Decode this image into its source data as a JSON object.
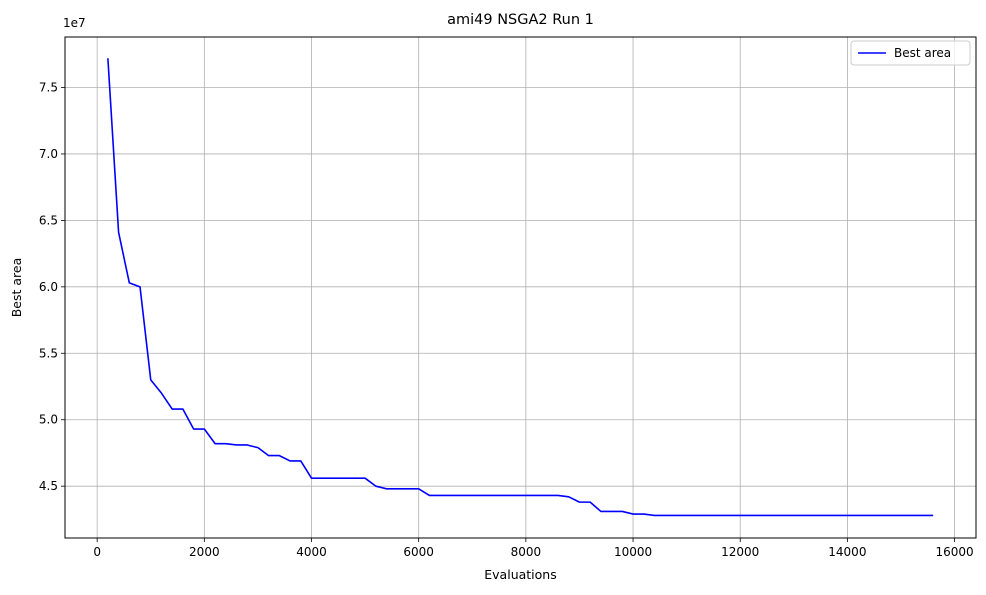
{
  "chart_data": {
    "type": "line",
    "title": "ami49 NSGA2 Run 1",
    "xlabel": "Evaluations",
    "ylabel": "Best area",
    "y_offset_label": "1e7",
    "xlim": [
      -600,
      16400
    ],
    "ylim": [
      41100000,
      78800000
    ],
    "xticks": [
      0,
      2000,
      4000,
      6000,
      8000,
      10000,
      12000,
      14000,
      16000
    ],
    "xtick_labels": [
      "0",
      "2000",
      "4000",
      "6000",
      "8000",
      "10000",
      "12000",
      "14000",
      "16000"
    ],
    "yticks": [
      45000000,
      50000000,
      55000000,
      60000000,
      65000000,
      70000000,
      75000000
    ],
    "ytick_labels": [
      "4.5",
      "5.0",
      "5.5",
      "6.0",
      "6.5",
      "7.0",
      "7.5"
    ],
    "grid": true,
    "legend_position": "top-right",
    "series": [
      {
        "name": "Best area",
        "color": "#0000ff",
        "x": [
          200,
          400,
          600,
          800,
          1000,
          1200,
          1400,
          1600,
          1800,
          2000,
          2200,
          2400,
          2600,
          2800,
          3000,
          3200,
          3400,
          3600,
          3800,
          4000,
          4200,
          4400,
          4600,
          4800,
          5000,
          5200,
          5400,
          5600,
          5800,
          6000,
          6200,
          6400,
          6600,
          6800,
          7000,
          7200,
          7400,
          7600,
          7800,
          8000,
          8200,
          8400,
          8600,
          8800,
          9000,
          9200,
          9400,
          9600,
          9800,
          10000,
          10200,
          10400,
          10600,
          10800,
          11000,
          11200,
          11400,
          11600,
          11800,
          12000,
          12200,
          12400,
          12600,
          12800,
          13000,
          13200,
          13400,
          13600,
          13800,
          14000,
          14200,
          14400,
          14600,
          14800,
          15000,
          15200,
          15400,
          15600
        ],
        "y": [
          77200000,
          64100000,
          60300000,
          60000000,
          53000000,
          52000000,
          50800000,
          50800000,
          49300000,
          49300000,
          48200000,
          48200000,
          48100000,
          48100000,
          47900000,
          47300000,
          47300000,
          46900000,
          46900000,
          45600000,
          45600000,
          45600000,
          45600000,
          45600000,
          45600000,
          45000000,
          44800000,
          44800000,
          44800000,
          44800000,
          44300000,
          44300000,
          44300000,
          44300000,
          44300000,
          44300000,
          44300000,
          44300000,
          44300000,
          44300000,
          44300000,
          44300000,
          44300000,
          44200000,
          43800000,
          43800000,
          43100000,
          43100000,
          43100000,
          42900000,
          42900000,
          42800000,
          42800000,
          42800000,
          42800000,
          42800000,
          42800000,
          42800000,
          42800000,
          42800000,
          42800000,
          42800000,
          42800000,
          42800000,
          42800000,
          42800000,
          42800000,
          42800000,
          42800000,
          42800000,
          42800000,
          42800000,
          42800000,
          42800000,
          42800000,
          42800000,
          42800000,
          42800000
        ]
      }
    ]
  }
}
